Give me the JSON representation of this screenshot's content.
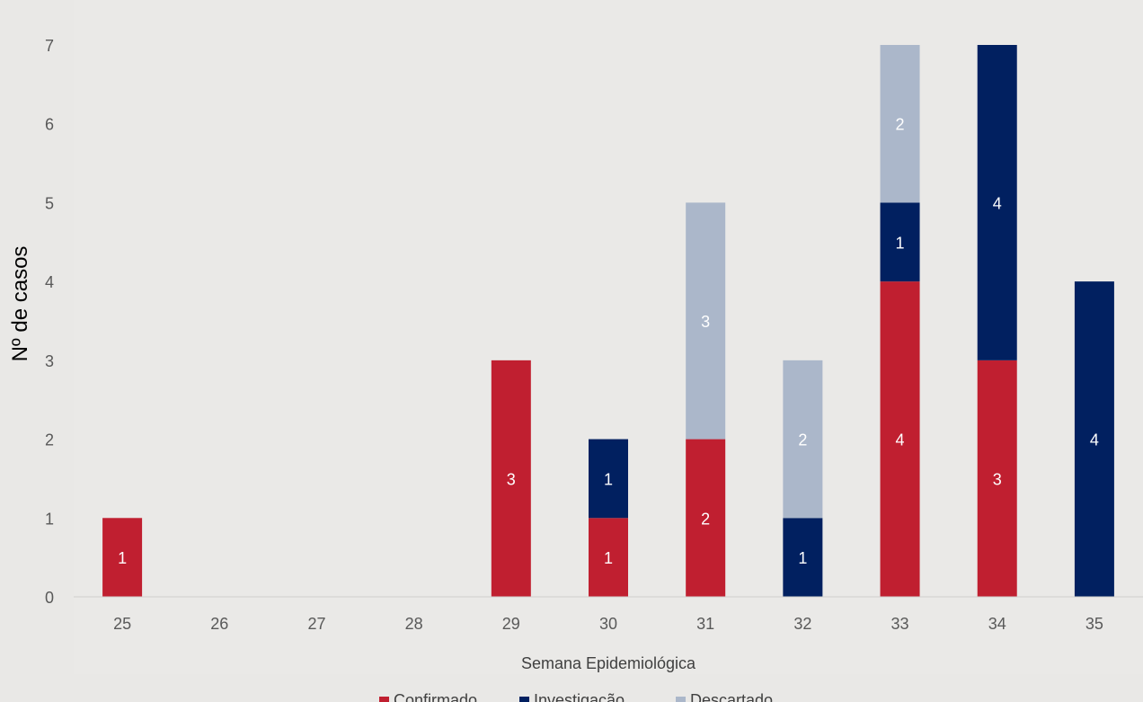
{
  "chart_data": {
    "type": "bar",
    "stacked": true,
    "title": "",
    "xlabel": "Semana Epidemiológica",
    "ylabel": "Nº de casos",
    "ylim": [
      0,
      7
    ],
    "yticks": [
      "0",
      "1",
      "2",
      "3",
      "4",
      "5",
      "6",
      "7"
    ],
    "categories": [
      "25",
      "26",
      "27",
      "28",
      "29",
      "30",
      "31",
      "32",
      "33",
      "34",
      "35"
    ],
    "series": [
      {
        "name": "Confirmado",
        "color": "#c01f30",
        "values": [
          1,
          0,
          0,
          0,
          3,
          1,
          2,
          0,
          4,
          3,
          0
        ]
      },
      {
        "name": "Investigação",
        "color": "#012060",
        "values": [
          0,
          0,
          0,
          0,
          0,
          1,
          0,
          1,
          1,
          4,
          4
        ]
      },
      {
        "name": "Descartado",
        "color": "#abb7ca",
        "values": [
          0,
          0,
          0,
          0,
          0,
          0,
          3,
          2,
          2,
          0,
          0
        ]
      }
    ],
    "grid": false,
    "legend_position": "bottom"
  }
}
